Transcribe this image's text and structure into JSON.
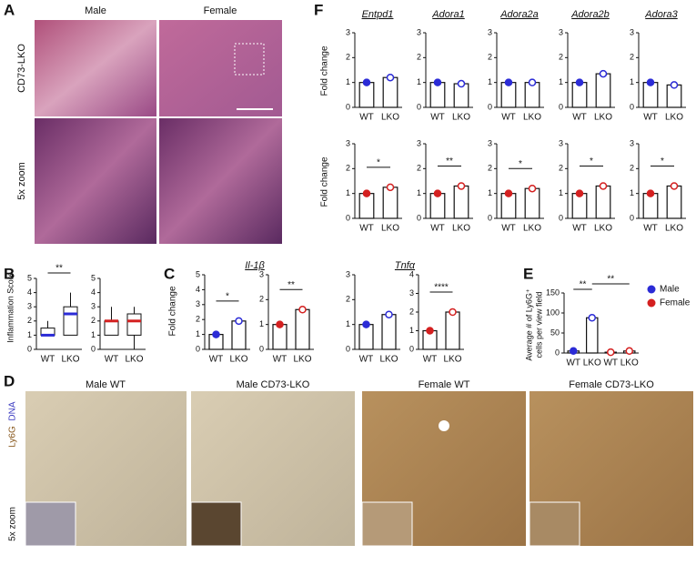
{
  "panel_labels": [
    "A",
    "B",
    "C",
    "D",
    "E",
    "F"
  ],
  "panel_a": {
    "columns": [
      "Male",
      "Female"
    ],
    "rows": [
      "CD73-LKO",
      "5x zoom"
    ]
  },
  "panel_b": {
    "y_label": "Inflammation Score",
    "categories": [
      "WT",
      "LKO"
    ],
    "ylim": [
      0,
      5
    ],
    "yticks": [
      0,
      1,
      2,
      3,
      4,
      5
    ],
    "charts": [
      {
        "color": "#2b2bd6",
        "significance": "**",
        "boxes": [
          {
            "min": 1,
            "q1": 1,
            "median": 1,
            "q3": 1.5,
            "max": 2
          },
          {
            "min": 1,
            "q1": 1,
            "median": 2.5,
            "q3": 3,
            "max": 4
          }
        ]
      },
      {
        "color": "#d42020",
        "boxes": [
          {
            "min": 1,
            "q1": 1,
            "median": 2,
            "q3": 2,
            "max": 3
          },
          {
            "min": 0,
            "q1": 1,
            "median": 2,
            "q3": 2.5,
            "max": 3
          }
        ]
      }
    ]
  },
  "panel_c": {
    "y_label": "Fold change",
    "genes": [
      "Il-1β",
      "Tnfα"
    ],
    "categories": [
      "WT",
      "LKO"
    ],
    "charts": [
      {
        "color": "#2b2bd6",
        "ylim": [
          0,
          5
        ],
        "yticks": [
          0,
          1,
          2,
          3,
          4,
          5
        ],
        "values": [
          1.0,
          1.9
        ],
        "significance": "*"
      },
      {
        "color": "#d42020",
        "ylim": [
          0,
          3
        ],
        "yticks": [
          0,
          1,
          2,
          3
        ],
        "values": [
          1.0,
          1.6
        ],
        "significance": "**"
      },
      {
        "color": "#2b2bd6",
        "ylim": [
          0,
          3
        ],
        "yticks": [
          0,
          1,
          2,
          3
        ],
        "values": [
          1.0,
          1.4
        ]
      },
      {
        "color": "#d42020",
        "ylim": [
          0,
          4
        ],
        "yticks": [
          0,
          1,
          2,
          3,
          4
        ],
        "values": [
          1.0,
          2.0
        ],
        "significance": "****"
      }
    ]
  },
  "panel_d": {
    "titles": [
      "Male WT",
      "Male CD73-LKO",
      "Female WT",
      "Female CD73-LKO"
    ],
    "stain": [
      "Ly6G",
      "DNA"
    ],
    "inset": "5x zoom"
  },
  "panel_e": {
    "y_label": [
      "Average # of Ly6G⁺",
      "cells per view field"
    ],
    "categories": [
      "WT",
      "LKO",
      "WT",
      "LKO"
    ],
    "values": [
      5,
      88,
      2,
      5
    ],
    "colors": [
      "#2b2bd6",
      "#2b2bd6",
      "#d42020",
      "#d42020"
    ],
    "ylim": [
      0,
      150
    ],
    "yticks": [
      0,
      50,
      100,
      150
    ],
    "significance": [
      "**",
      "**"
    ],
    "legend": [
      {
        "name": "Male",
        "color": "#2b2bd6"
      },
      {
        "name": "Female",
        "color": "#d42020"
      }
    ]
  },
  "panel_f": {
    "y_label": "Fold change",
    "genes": [
      "Entpd1",
      "Adora1",
      "Adora2a",
      "Adora2b",
      "Adora3"
    ],
    "categories": [
      "WT",
      "LKO"
    ],
    "ylim": [
      0,
      3
    ],
    "yticks": [
      0,
      1,
      2,
      3
    ],
    "rows": [
      {
        "color": "#2b2bd6",
        "charts": [
          {
            "values": [
              1.0,
              1.2
            ]
          },
          {
            "values": [
              1.0,
              0.95
            ]
          },
          {
            "values": [
              1.0,
              1.0
            ]
          },
          {
            "values": [
              1.0,
              1.35
            ]
          },
          {
            "values": [
              1.0,
              0.9
            ]
          }
        ]
      },
      {
        "color": "#d42020",
        "charts": [
          {
            "values": [
              1.0,
              1.25
            ],
            "significance": "*"
          },
          {
            "values": [
              1.0,
              1.3
            ],
            "significance": "**"
          },
          {
            "values": [
              1.0,
              1.2
            ],
            "significance": "*"
          },
          {
            "values": [
              1.0,
              1.3
            ],
            "significance": "*"
          },
          {
            "values": [
              1.0,
              1.3
            ],
            "significance": "*"
          }
        ]
      }
    ]
  }
}
